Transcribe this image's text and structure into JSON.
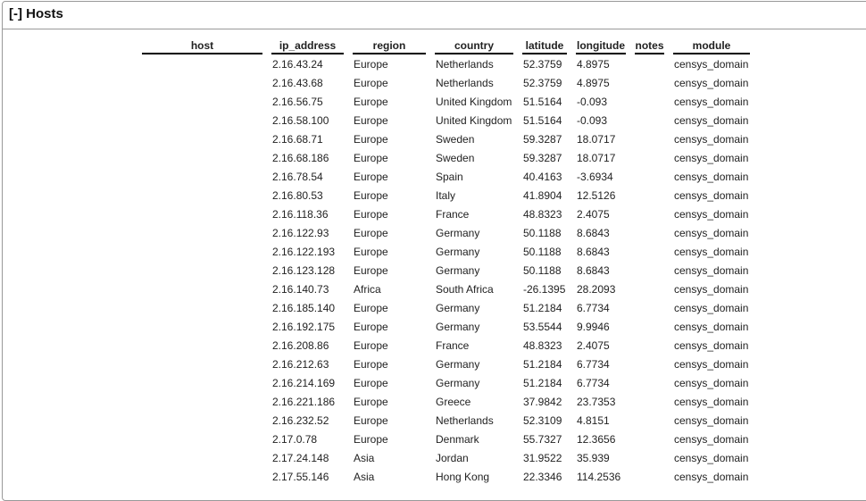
{
  "panel": {
    "title": "[-] Hosts"
  },
  "table": {
    "columns": [
      "host",
      "ip_address",
      "region",
      "country",
      "latitude",
      "longitude",
      "notes",
      "module"
    ],
    "rows": [
      {
        "ip_address": "2.16.43.24",
        "region": "Europe",
        "country": "Netherlands",
        "latitude": "52.3759",
        "longitude": "4.8975",
        "module": "censys_domain"
      },
      {
        "ip_address": "2.16.43.68",
        "region": "Europe",
        "country": "Netherlands",
        "latitude": "52.3759",
        "longitude": "4.8975",
        "module": "censys_domain"
      },
      {
        "ip_address": "2.16.56.75",
        "region": "Europe",
        "country": "United Kingdom",
        "latitude": "51.5164",
        "longitude": "-0.093",
        "module": "censys_domain"
      },
      {
        "ip_address": "2.16.58.100",
        "region": "Europe",
        "country": "United Kingdom",
        "latitude": "51.5164",
        "longitude": "-0.093",
        "module": "censys_domain"
      },
      {
        "ip_address": "2.16.68.71",
        "region": "Europe",
        "country": "Sweden",
        "latitude": "59.3287",
        "longitude": "18.0717",
        "module": "censys_domain"
      },
      {
        "ip_address": "2.16.68.186",
        "region": "Europe",
        "country": "Sweden",
        "latitude": "59.3287",
        "longitude": "18.0717",
        "module": "censys_domain"
      },
      {
        "ip_address": "2.16.78.54",
        "region": "Europe",
        "country": "Spain",
        "latitude": "40.4163",
        "longitude": "-3.6934",
        "module": "censys_domain"
      },
      {
        "ip_address": "2.16.80.53",
        "region": "Europe",
        "country": "Italy",
        "latitude": "41.8904",
        "longitude": "12.5126",
        "module": "censys_domain"
      },
      {
        "ip_address": "2.16.118.36",
        "region": "Europe",
        "country": "France",
        "latitude": "48.8323",
        "longitude": "2.4075",
        "module": "censys_domain"
      },
      {
        "ip_address": "2.16.122.93",
        "region": "Europe",
        "country": "Germany",
        "latitude": "50.1188",
        "longitude": "8.6843",
        "module": "censys_domain"
      },
      {
        "ip_address": "2.16.122.193",
        "region": "Europe",
        "country": "Germany",
        "latitude": "50.1188",
        "longitude": "8.6843",
        "module": "censys_domain"
      },
      {
        "ip_address": "2.16.123.128",
        "region": "Europe",
        "country": "Germany",
        "latitude": "50.1188",
        "longitude": "8.6843",
        "module": "censys_domain"
      },
      {
        "ip_address": "2.16.140.73",
        "region": "Africa",
        "country": "South Africa",
        "latitude": "-26.1395",
        "longitude": "28.2093",
        "module": "censys_domain"
      },
      {
        "ip_address": "2.16.185.140",
        "region": "Europe",
        "country": "Germany",
        "latitude": "51.2184",
        "longitude": "6.7734",
        "module": "censys_domain"
      },
      {
        "ip_address": "2.16.192.175",
        "region": "Europe",
        "country": "Germany",
        "latitude": "53.5544",
        "longitude": "9.9946",
        "module": "censys_domain"
      },
      {
        "ip_address": "2.16.208.86",
        "region": "Europe",
        "country": "France",
        "latitude": "48.8323",
        "longitude": "2.4075",
        "module": "censys_domain"
      },
      {
        "ip_address": "2.16.212.63",
        "region": "Europe",
        "country": "Germany",
        "latitude": "51.2184",
        "longitude": "6.7734",
        "module": "censys_domain"
      },
      {
        "ip_address": "2.16.214.169",
        "region": "Europe",
        "country": "Germany",
        "latitude": "51.2184",
        "longitude": "6.7734",
        "module": "censys_domain"
      },
      {
        "ip_address": "2.16.221.186",
        "region": "Europe",
        "country": "Greece",
        "latitude": "37.9842",
        "longitude": "23.7353",
        "module": "censys_domain"
      },
      {
        "ip_address": "2.16.232.52",
        "region": "Europe",
        "country": "Netherlands",
        "latitude": "52.3109",
        "longitude": "4.8151",
        "module": "censys_domain"
      },
      {
        "ip_address": "2.17.0.78",
        "region": "Europe",
        "country": "Denmark",
        "latitude": "55.7327",
        "longitude": "12.3656",
        "module": "censys_domain"
      },
      {
        "ip_address": "2.17.24.148",
        "region": "Asia",
        "country": "Jordan",
        "latitude": "31.9522",
        "longitude": "35.939",
        "module": "censys_domain"
      },
      {
        "ip_address": "2.17.55.146",
        "region": "Asia",
        "country": "Hong Kong",
        "latitude": "22.3346",
        "longitude": "114.2536",
        "module": "censys_domain"
      }
    ]
  }
}
